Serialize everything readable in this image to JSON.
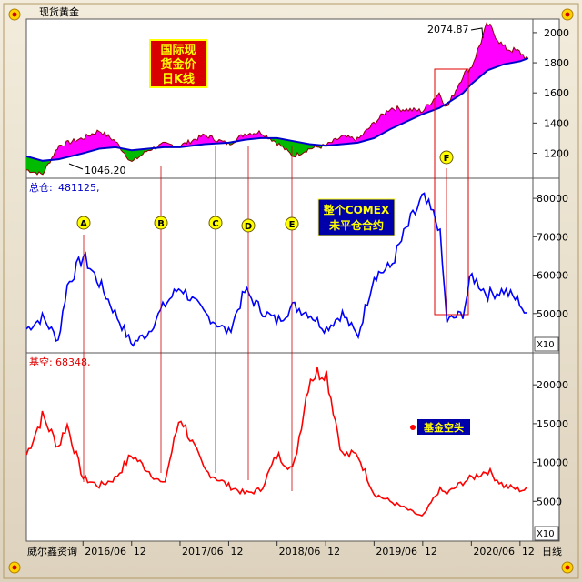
{
  "window_title": "现货黄金",
  "footer_left": "威尔鑫资询",
  "footer_right": "日线",
  "price_panel": {
    "badge_lines": [
      "国际现",
      "货金价",
      "日K线"
    ],
    "high_label": "2074.87",
    "low_label": "1046.20",
    "y_ticks": [
      "2000",
      "1800",
      "1600",
      "1400",
      "1200"
    ]
  },
  "oi_panel": {
    "label_name": "总仓:",
    "label_value": "481125,",
    "note_lines": [
      "整个COMEX",
      "未平仓合约"
    ],
    "y_ticks": [
      "80000",
      "70000",
      "60000",
      "50000"
    ],
    "scale_note": "X10"
  },
  "fund_panel": {
    "label_name": "基空:",
    "label_value": "68348,",
    "legend": "基金空头",
    "y_ticks": [
      "20000",
      "15000",
      "10000",
      "5000"
    ],
    "scale_note": "X10"
  },
  "x_ticks": [
    "2016/06",
    "12",
    "2017/06",
    "12",
    "2018/06",
    "12",
    "2019/06",
    "12",
    "2020/06",
    "12"
  ],
  "markers": [
    "A",
    "B",
    "C",
    "D",
    "E",
    "F"
  ],
  "colors": {
    "price_up": "#ff00ff",
    "price_down": "#00bb00",
    "ma": "#0000cc",
    "oi": "#0000ff",
    "fund": "#ff0000",
    "markers": "#ffff00"
  },
  "chart_data": [
    {
      "type": "line",
      "x": [
        "2015-11",
        "2016-01",
        "2016-03",
        "2016-06",
        "2016-08",
        "2016-10",
        "2016-12",
        "2017-02",
        "2017-04",
        "2017-06",
        "2017-09",
        "2017-12",
        "2018-02",
        "2018-04",
        "2018-06",
        "2018-08",
        "2018-10",
        "2018-12",
        "2019-02",
        "2019-04",
        "2019-06",
        "2019-08",
        "2019-10",
        "2019-12",
        "2020-02",
        "2020-03",
        "2020-05",
        "2020-06",
        "2020-08",
        "2020-10",
        "2020-12",
        "2021-01"
      ],
      "series": [
        {
          "values": [
            1090,
            1060,
            1250,
            1300,
            1350,
            1280,
            1140,
            1220,
            1260,
            1250,
            1320,
            1260,
            1330,
            1340,
            1270,
            1180,
            1230,
            1250,
            1310,
            1290,
            1400,
            1500,
            1490,
            1480,
            1600,
            1500,
            1720,
            1770,
            2060,
            1900,
            1870,
            1820
          ]
        },
        {
          "values": [
            1180,
            1150,
            1160,
            1200,
            1230,
            1240,
            1220,
            1230,
            1240,
            1240,
            1260,
            1270,
            1290,
            1300,
            1300,
            1280,
            1260,
            1250,
            1260,
            1270,
            1300,
            1360,
            1410,
            1460,
            1500,
            1530,
            1600,
            1660,
            1750,
            1790,
            1810,
            1830
          ]
        }
      ],
      "ylim": [
        1040,
        2090
      ],
      "annotations": [
        "2074.87",
        "1046.20"
      ]
    },
    {
      "type": "line",
      "x": [
        "2015-11",
        "2016-01",
        "2016-03",
        "2016-04",
        "2016-06",
        "2016-08",
        "2016-10",
        "2016-12",
        "2017-02",
        "2017-04",
        "2017-06",
        "2017-09",
        "2017-12",
        "2018-02",
        "2018-04",
        "2018-06",
        "2018-08",
        "2018-10",
        "2018-12",
        "2019-02",
        "2019-04",
        "2019-06",
        "2019-08",
        "2019-10",
        "2019-12",
        "2020-02",
        "2020-03",
        "2020-05",
        "2020-06",
        "2020-08",
        "2020-10",
        "2020-12",
        "2021-01"
      ],
      "series": [
        {
          "values": [
            46000,
            49000,
            43000,
            57000,
            65000,
            58000,
            50000,
            42000,
            45000,
            52000,
            57000,
            50000,
            45000,
            56000,
            51000,
            48000,
            52000,
            50000,
            46000,
            50000,
            44000,
            60000,
            62000,
            72000,
            80000,
            73000,
            48000,
            50000,
            60000,
            55000,
            56000,
            53000,
            48000
          ]
        }
      ],
      "ylim": [
        40000,
        85000
      ]
    },
    {
      "type": "line",
      "x": [
        "2015-11",
        "2016-01",
        "2016-03",
        "2016-04",
        "2016-06",
        "2016-08",
        "2016-10",
        "2016-12",
        "2017-02",
        "2017-04",
        "2017-06",
        "2017-09",
        "2017-12",
        "2018-02",
        "2018-04",
        "2018-06",
        "2018-08",
        "2018-10",
        "2018-12",
        "2019-02",
        "2019-04",
        "2019-06",
        "2019-08",
        "2019-10",
        "2019-12",
        "2020-02",
        "2020-03",
        "2020-05",
        "2020-06",
        "2020-08",
        "2020-10",
        "2020-12",
        "2021-01"
      ],
      "series": [
        {
          "values": [
            11000,
            16000,
            12000,
            15000,
            8000,
            7000,
            8000,
            11000,
            9000,
            7000,
            16000,
            9000,
            7000,
            6000,
            6500,
            11000,
            9000,
            21000,
            22000,
            11000,
            11000,
            6000,
            5000,
            4000,
            3000,
            6500,
            6000,
            7500,
            8000,
            9000,
            7000,
            6500,
            6500
          ]
        }
      ],
      "ylim": [
        0,
        24000
      ],
      "legend": [
        "基金空头"
      ]
    }
  ]
}
